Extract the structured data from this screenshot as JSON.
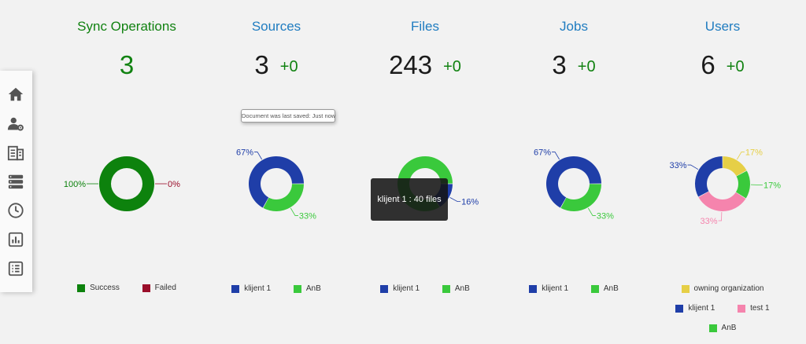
{
  "sidebar": {
    "items": [
      {
        "icon": "home-icon"
      },
      {
        "icon": "user-settings-icon"
      },
      {
        "icon": "documents-icon"
      },
      {
        "icon": "server-icon"
      },
      {
        "icon": "clock-icon"
      },
      {
        "icon": "report-chart-icon"
      },
      {
        "icon": "list-icon"
      }
    ]
  },
  "colors": {
    "success": "#0d820d",
    "failed": "#9a0e2a",
    "klijent": "#1f3ea8",
    "anb": "#3ac93c",
    "owning": "#e6cf46",
    "test": "#f584ad",
    "title_green": "#118211",
    "title_blue": "#1f7cc0"
  },
  "panels": [
    {
      "title": "Sync Operations",
      "value": "3",
      "delta": ""
    },
    {
      "title": "Sources",
      "value": "3",
      "delta": "+0"
    },
    {
      "title": "Files",
      "value": "243",
      "delta": "+0"
    },
    {
      "title": "Jobs",
      "value": "3",
      "delta": "+0"
    },
    {
      "title": "Users",
      "value": "6",
      "delta": "+0"
    }
  ],
  "chart_data": [
    {
      "type": "pie",
      "title": "Sync Operations",
      "categories": [
        "Success",
        "Failed"
      ],
      "values": [
        100,
        0
      ],
      "labels": [
        "100%",
        "0%"
      ],
      "legend": "bottom"
    },
    {
      "type": "pie",
      "title": "Sources",
      "categories": [
        "klijent 1",
        "AnB"
      ],
      "values": [
        67,
        33
      ],
      "labels": [
        "67%",
        "33%"
      ],
      "legend": "bottom"
    },
    {
      "type": "pie",
      "title": "Files",
      "categories": [
        "klijent 1",
        "AnB"
      ],
      "values": [
        16,
        84
      ],
      "labels": [
        "16%",
        ""
      ],
      "legend": "bottom"
    },
    {
      "type": "pie",
      "title": "Jobs",
      "categories": [
        "klijent 1",
        "AnB"
      ],
      "values": [
        67,
        33
      ],
      "labels": [
        "67%",
        "33%"
      ],
      "legend": "bottom"
    },
    {
      "type": "pie",
      "title": "Users",
      "categories": [
        "owning organization",
        "klijent 1",
        "test 1",
        "AnB"
      ],
      "values": [
        17,
        33,
        33,
        17
      ],
      "labels": [
        "17%",
        "33%",
        "33%",
        "17%"
      ],
      "legend": "bottom"
    }
  ],
  "tooltips": {
    "saved": "Document was last saved: Just now",
    "files_hover": "klijent 1 : 40 files"
  }
}
